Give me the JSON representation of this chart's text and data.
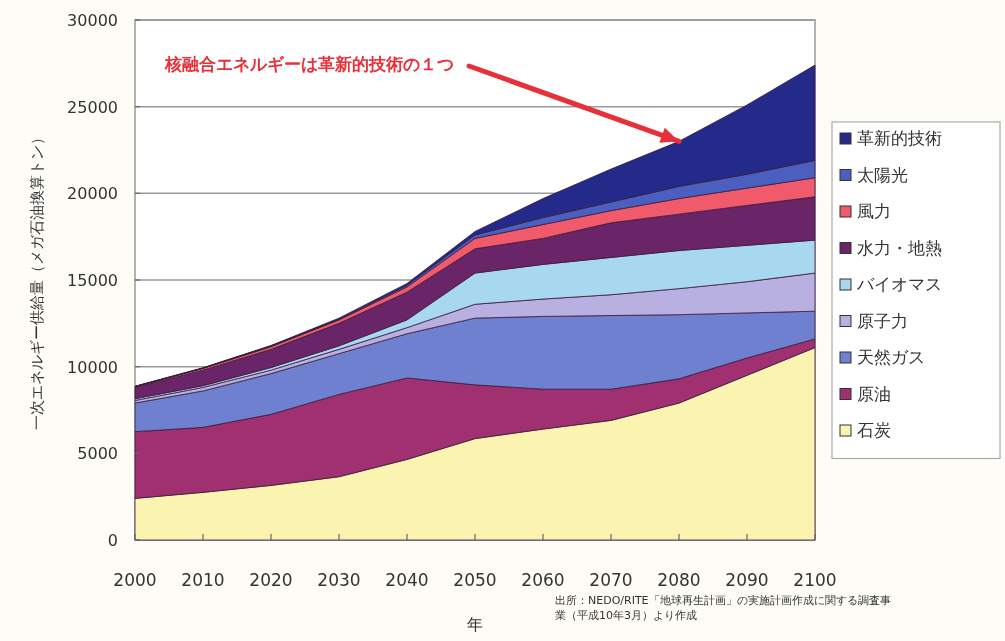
{
  "chart_data": {
    "type": "area",
    "stacked": true,
    "xlabel": "年",
    "ylabel": "一次エネルギー供給量（メガ石油換算トン）",
    "annotations": [
      {
        "text": "核融合エネルギーは革新的技術の１つ",
        "x": 2080,
        "y": 23000
      },
      "出所：NEDO/RITE「地球再生計画」の実施計画作成に関する調査事業（平成10年3月）より作成"
    ],
    "x": [
      2000,
      2010,
      2020,
      2030,
      2040,
      2050,
      2060,
      2070,
      2080,
      2090,
      2100
    ],
    "xlim": [
      2000,
      2100
    ],
    "xticks": [
      2000,
      2010,
      2020,
      2030,
      2040,
      2050,
      2060,
      2070,
      2080,
      2090,
      2100
    ],
    "ylim": [
      0,
      30000
    ],
    "yticks": [
      0,
      5000,
      10000,
      15000,
      20000,
      25000,
      30000
    ],
    "grid": "y",
    "legend": "right",
    "series": [
      {
        "name": "石炭",
        "color": "#fbf3b0",
        "values": [
          2400,
          2750,
          3150,
          3650,
          4650,
          5850,
          6400,
          6900,
          7900,
          9500,
          11100
        ]
      },
      {
        "name": "原油",
        "color": "#a03070",
        "values": [
          3850,
          3750,
          4100,
          4750,
          4700,
          3100,
          2300,
          1800,
          1400,
          1000,
          500
        ]
      },
      {
        "name": "天然ガス",
        "color": "#7080d0",
        "values": [
          1650,
          2100,
          2350,
          2350,
          2550,
          3850,
          4200,
          4250,
          3700,
          2600,
          1600
        ]
      },
      {
        "name": "原子力",
        "color": "#b8b0e0",
        "values": [
          150,
          200,
          200,
          250,
          350,
          800,
          1000,
          1200,
          1500,
          1800,
          2200
        ]
      },
      {
        "name": "バイオマス",
        "color": "#a8d8f0",
        "values": [
          100,
          100,
          150,
          200,
          450,
          1800,
          2000,
          2150,
          2200,
          2100,
          1900
        ]
      },
      {
        "name": "水力・地熱",
        "color": "#6a2468",
        "values": [
          650,
          900,
          1050,
          1300,
          1600,
          1400,
          1500,
          2000,
          2100,
          2300,
          2500
        ]
      },
      {
        "name": "風力",
        "color": "#f05a6a",
        "values": [
          50,
          100,
          150,
          200,
          300,
          600,
          800,
          700,
          900,
          1000,
          1100
        ]
      },
      {
        "name": "太陽光",
        "color": "#4a5fc0",
        "values": [
          10,
          20,
          50,
          50,
          100,
          200,
          400,
          500,
          700,
          800,
          1000
        ]
      },
      {
        "name": "革新的技術",
        "color": "#232a8a",
        "values": [
          10,
          20,
          20,
          50,
          100,
          200,
          1100,
          1900,
          2600,
          4000,
          5500
        ]
      }
    ]
  }
}
